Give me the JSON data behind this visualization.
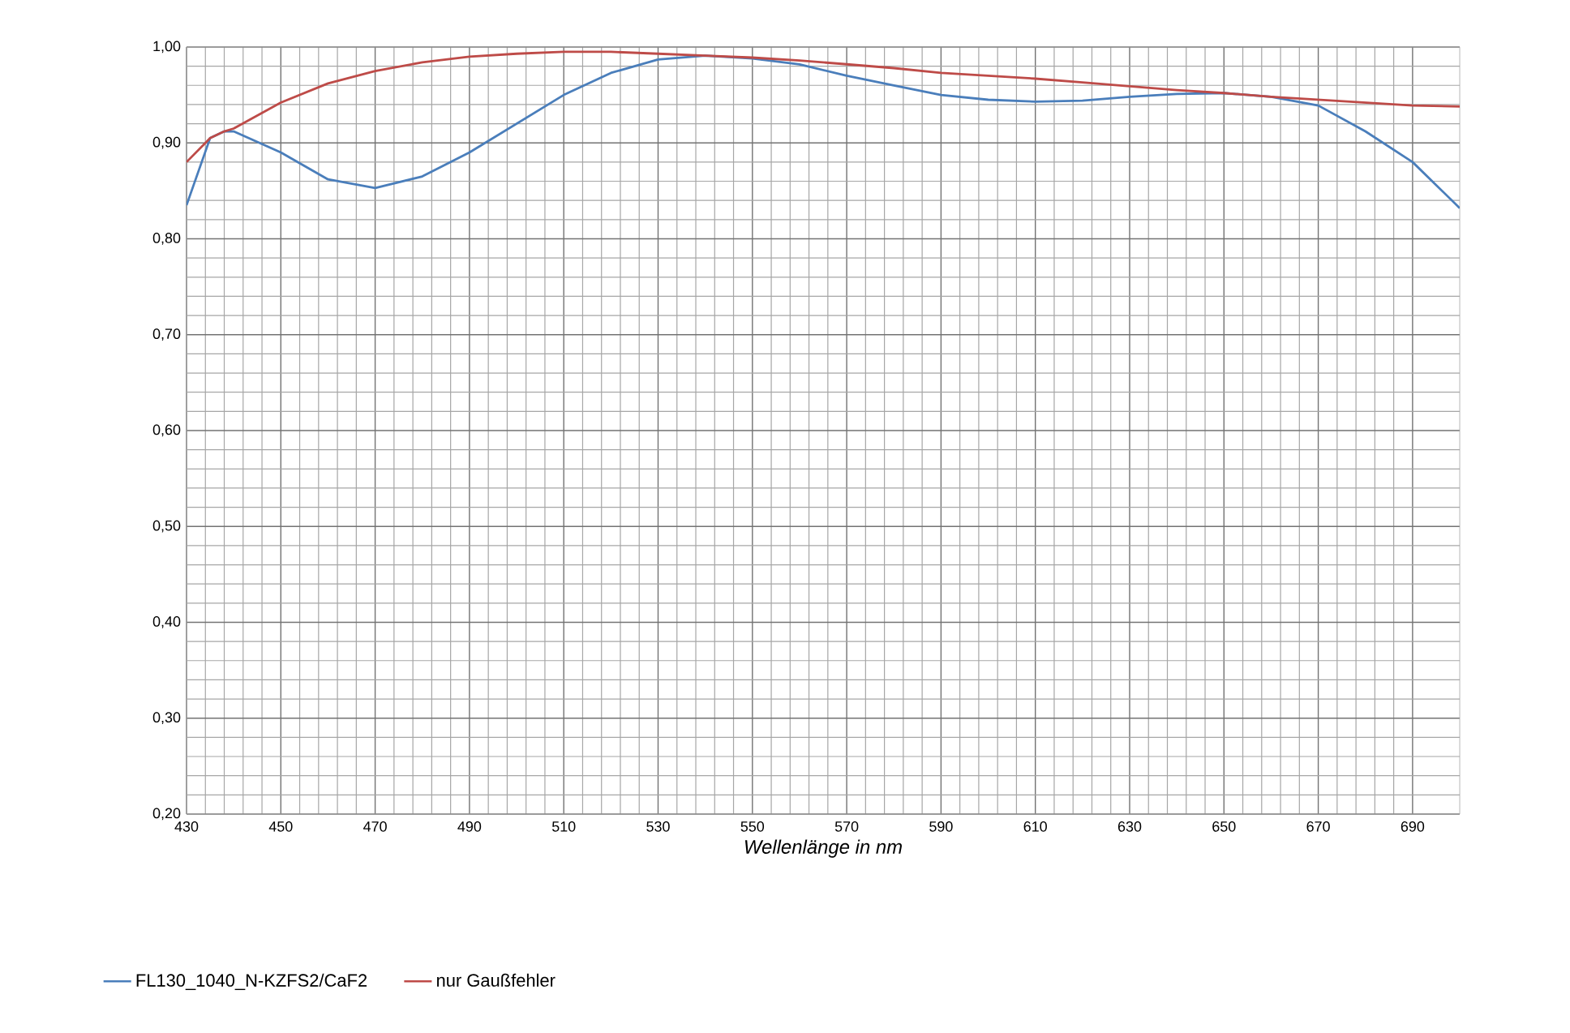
{
  "chart_data": {
    "type": "line",
    "xlabel": "Wellenlänge in nm",
    "x": [
      430,
      435,
      438,
      440,
      450,
      460,
      470,
      480,
      490,
      500,
      510,
      520,
      530,
      540,
      550,
      560,
      570,
      580,
      590,
      600,
      610,
      620,
      630,
      640,
      650,
      660,
      670,
      680,
      690,
      700
    ],
    "series": [
      {
        "name": "FL130_1040_N-KZFS2/CaF2",
        "color": "#4a7ebb",
        "values": [
          0.835,
          0.905,
          0.912,
          0.912,
          0.89,
          0.862,
          0.853,
          0.865,
          0.89,
          0.92,
          0.95,
          0.973,
          0.987,
          0.991,
          0.988,
          0.982,
          0.97,
          0.96,
          0.95,
          0.945,
          0.943,
          0.944,
          0.948,
          0.951,
          0.952,
          0.948,
          0.939,
          0.912,
          0.88,
          0.832
        ]
      },
      {
        "name": "nur Gaußfehler",
        "color": "#be4b48",
        "values": [
          0.88,
          0.905,
          0.912,
          0.915,
          0.942,
          0.962,
          0.975,
          0.984,
          0.99,
          0.993,
          0.995,
          0.995,
          0.993,
          0.991,
          0.989,
          0.986,
          0.982,
          0.978,
          0.973,
          0.97,
          0.967,
          0.963,
          0.959,
          0.955,
          0.952,
          0.948,
          0.945,
          0.942,
          0.939,
          0.938
        ]
      }
    ],
    "xlim": [
      430,
      700
    ],
    "xticks": [
      430,
      450,
      470,
      490,
      510,
      530,
      550,
      570,
      590,
      610,
      630,
      650,
      670,
      690
    ],
    "ylim": [
      0.2,
      1.0
    ],
    "yticks": [
      {
        "value": 0.2,
        "label": "0,20"
      },
      {
        "value": 0.3,
        "label": "0,30"
      },
      {
        "value": 0.4,
        "label": "0,40"
      },
      {
        "value": 0.5,
        "label": "0,50"
      },
      {
        "value": 0.6,
        "label": "0,60"
      },
      {
        "value": 0.7,
        "label": "0,70"
      },
      {
        "value": 0.8,
        "label": "0,80"
      },
      {
        "value": 0.9,
        "label": "0,90"
      },
      {
        "value": 1.0,
        "label": "1,00"
      }
    ],
    "grid": true,
    "legend": "bottom",
    "marker": "none",
    "line_style": "solid"
  }
}
